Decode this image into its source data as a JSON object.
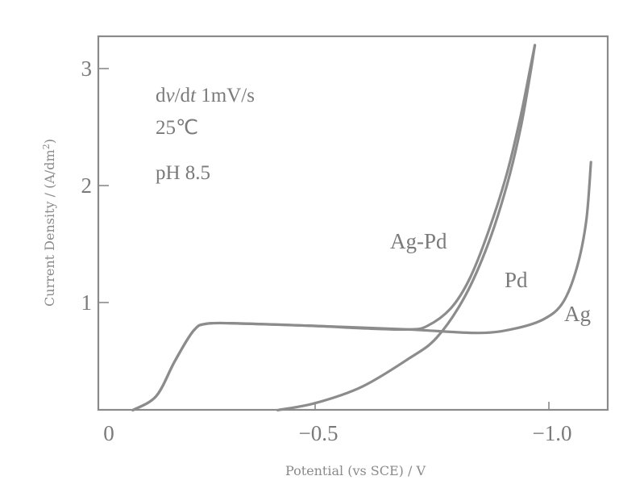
{
  "chart_data": {
    "type": "line",
    "title": "",
    "xlabel": "Potential (vs SCE) / V",
    "ylabel": "Current Density / (A/dm²)",
    "ylabel_parts": {
      "main": "Current Density / (A/dm",
      "sup": "2",
      "end": ")"
    },
    "xlim": [
      0.036,
      -1.09
    ],
    "ylim": [
      0.08,
      3.3
    ],
    "x_ticks": [
      {
        "value": 0,
        "label": "0"
      },
      {
        "value": -0.5,
        "label": "−0.5"
      },
      {
        "value": -1.0,
        "label": "−1.0"
      }
    ],
    "y_ticks": [
      {
        "value": 1,
        "label": "1"
      },
      {
        "value": 2,
        "label": "2"
      },
      {
        "value": 3,
        "label": "3"
      }
    ],
    "grid": false,
    "legend": "inline labels",
    "annotations": [
      "dv/dt  1mV/s",
      "25℃",
      "pH 8.5"
    ],
    "series": [
      {
        "name": "Ag-Pd",
        "points": [
          [
            -0.11,
            0.08
          ],
          [
            -0.16,
            0.2
          ],
          [
            -0.2,
            0.5
          ],
          [
            -0.24,
            0.76
          ],
          [
            -0.27,
            0.82
          ],
          [
            -0.35,
            0.82
          ],
          [
            -0.5,
            0.8
          ],
          [
            -0.6,
            0.78
          ],
          [
            -0.7,
            0.77
          ],
          [
            -0.74,
            0.8
          ],
          [
            -0.79,
            0.95
          ],
          [
            -0.83,
            1.2
          ],
          [
            -0.87,
            1.6
          ],
          [
            -0.91,
            2.1
          ],
          [
            -0.94,
            2.6
          ],
          [
            -0.96,
            3.0
          ],
          [
            -0.97,
            3.2
          ]
        ]
      },
      {
        "name": "Pd",
        "points": [
          [
            -0.42,
            0.08
          ],
          [
            -0.5,
            0.14
          ],
          [
            -0.6,
            0.28
          ],
          [
            -0.7,
            0.52
          ],
          [
            -0.76,
            0.7
          ],
          [
            -0.82,
            1.05
          ],
          [
            -0.87,
            1.5
          ],
          [
            -0.91,
            2.0
          ],
          [
            -0.94,
            2.5
          ],
          [
            -0.96,
            2.95
          ],
          [
            -0.97,
            3.2
          ]
        ]
      },
      {
        "name": "Ag",
        "points": [
          [
            -0.11,
            0.08
          ],
          [
            -0.16,
            0.2
          ],
          [
            -0.2,
            0.5
          ],
          [
            -0.24,
            0.76
          ],
          [
            -0.27,
            0.82
          ],
          [
            -0.35,
            0.82
          ],
          [
            -0.5,
            0.8
          ],
          [
            -0.7,
            0.77
          ],
          [
            -0.85,
            0.74
          ],
          [
            -0.93,
            0.78
          ],
          [
            -0.99,
            0.86
          ],
          [
            -1.03,
            1.0
          ],
          [
            -1.06,
            1.3
          ],
          [
            -1.08,
            1.7
          ],
          [
            -1.09,
            2.2
          ]
        ]
      }
    ],
    "series_labels": [
      {
        "name": "Ag-Pd",
        "text": "Ag-Pd",
        "x": 484,
        "y": 308
      },
      {
        "name": "Pd",
        "text": "Pd",
        "x": 626,
        "y": 356
      },
      {
        "name": "Ag",
        "text": "Ag",
        "x": 700,
        "y": 398
      }
    ],
    "line_color": "#8c8c8c",
    "axis_color": "#8a8a8a",
    "text_color": "#7a7a7a"
  }
}
